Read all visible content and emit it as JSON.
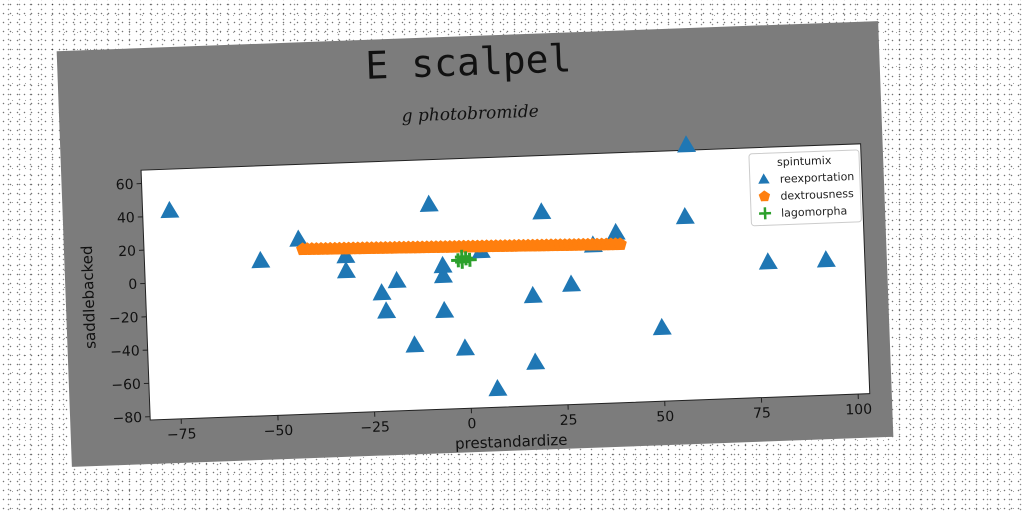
{
  "chart_data": {
    "type": "scatter",
    "title": "E scalpel",
    "subtitle": "g photobromide",
    "xlabel": "prestandardize",
    "ylabel": "saddlebacked",
    "xlim": [
      -83,
      103
    ],
    "ylim": [
      -82,
      68
    ],
    "xticks": [
      -75,
      -50,
      -25,
      0,
      25,
      50,
      75,
      100
    ],
    "yticks": [
      -80,
      -60,
      -40,
      -20,
      0,
      20,
      40,
      60
    ],
    "grid": false,
    "legend": {
      "title": "spintumix",
      "position": "top-right"
    },
    "series": [
      {
        "name": "reexportation",
        "marker": "triangle",
        "color": "#1f77b4",
        "points": [
          [
            -76,
            43
          ],
          [
            -53,
            11
          ],
          [
            -43,
            23
          ],
          [
            -31,
            12
          ],
          [
            -31,
            3
          ],
          [
            -22,
            -11
          ],
          [
            -21,
            -22
          ],
          [
            -18,
            -4
          ],
          [
            -14,
            -43
          ],
          [
            -9,
            41
          ],
          [
            -6,
            -2
          ],
          [
            -6,
            4
          ],
          [
            -6,
            -23
          ],
          [
            -1,
            -46
          ],
          [
            4,
            12
          ],
          [
            7,
            -71
          ],
          [
            17,
            -16
          ],
          [
            17,
            -56
          ],
          [
            20,
            34
          ],
          [
            27,
            -10
          ],
          [
            33,
            13
          ],
          [
            39,
            20
          ],
          [
            50,
            -38
          ],
          [
            57,
            28
          ],
          [
            58,
            71
          ],
          [
            78,
            -1
          ],
          [
            93,
            -1
          ]
        ]
      },
      {
        "name": "dextrousness",
        "marker": "pentagon",
        "color": "#ff7f0e",
        "x_range": [
          -42,
          40
        ],
        "y_start": 17,
        "y_end": 13,
        "count": 70
      },
      {
        "name": "lagomorpha",
        "marker": "plus",
        "color": "#2ca02c",
        "points": [
          [
            -1,
            9
          ],
          [
            -1,
            6
          ],
          [
            1,
            7
          ],
          [
            0,
            8
          ],
          [
            -2,
            7
          ]
        ]
      }
    ]
  }
}
